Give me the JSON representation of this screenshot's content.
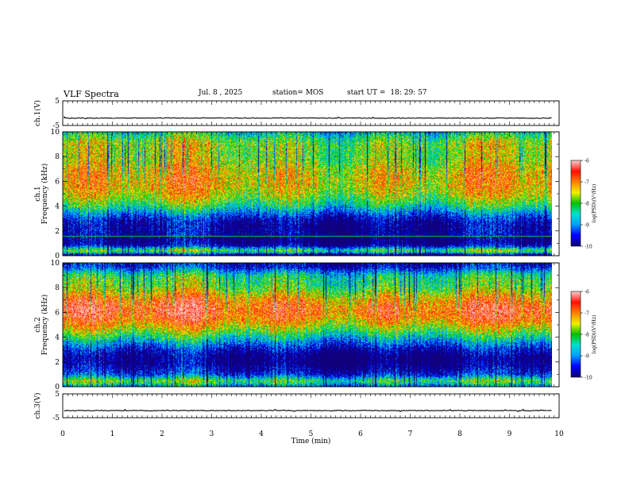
{
  "header": {
    "title": "VLF Spectra",
    "date": "Jul. 8 , 2025",
    "station": "station= MOS",
    "start_label": "start UT =",
    "start_time": "18: 29: 57"
  },
  "chart_data": [
    {
      "type": "line",
      "name": "ch1-waveform",
      "ylabel": "ch.1(V)",
      "ylim": [
        -5,
        5
      ],
      "yticks": [
        "5",
        "-5"
      ],
      "xlim": [
        0,
        10
      ],
      "baseline": -2,
      "grid": false
    },
    {
      "type": "heatmap",
      "name": "ch1-spectrogram",
      "ylabel": "ch.1 Frequency (kHz)",
      "ylim": [
        0,
        10
      ],
      "yticks": [
        "0",
        "2",
        "4",
        "6",
        "8",
        "10"
      ],
      "xlim": [
        0,
        9.85
      ],
      "profile": "ch1",
      "colorbar": {
        "label": "log(PSD)(V²/Hz)",
        "ticks": [
          "-6",
          "-7",
          "-8",
          "-9",
          "-10"
        ],
        "range": [
          -10,
          -6
        ]
      }
    },
    {
      "type": "heatmap",
      "name": "ch2-spectrogram",
      "ylabel": "ch.2 Frequency (kHz)",
      "ylim": [
        0,
        10
      ],
      "yticks": [
        "0",
        "2",
        "4",
        "6",
        "8",
        "10"
      ],
      "xlim": [
        0,
        9.85
      ],
      "profile": "ch2",
      "colorbar": {
        "label": "log(PSD)(V²/Hz)",
        "ticks": [
          "-6",
          "-7",
          "-8",
          "-9",
          "-10"
        ],
        "range": [
          -10,
          -6
        ]
      }
    },
    {
      "type": "line",
      "name": "ch3-waveform",
      "ylabel": "ch.3(V)",
      "ylim": [
        -5,
        5
      ],
      "yticks": [
        "5",
        "-5"
      ],
      "xlim": [
        0,
        10
      ],
      "baseline": -2,
      "grid": false
    }
  ],
  "xaxis": {
    "label": "Time (min)",
    "ticks": [
      "0",
      "1",
      "2",
      "3",
      "4",
      "5",
      "6",
      "7",
      "8",
      "9",
      "10"
    ]
  },
  "colors": {
    "colormap": [
      "#10007a",
      "#0000ff",
      "#00a0ff",
      "#00e0d0",
      "#00c000",
      "#f0f000",
      "#ff8000",
      "#ff1000",
      "#ffc8c8"
    ]
  }
}
